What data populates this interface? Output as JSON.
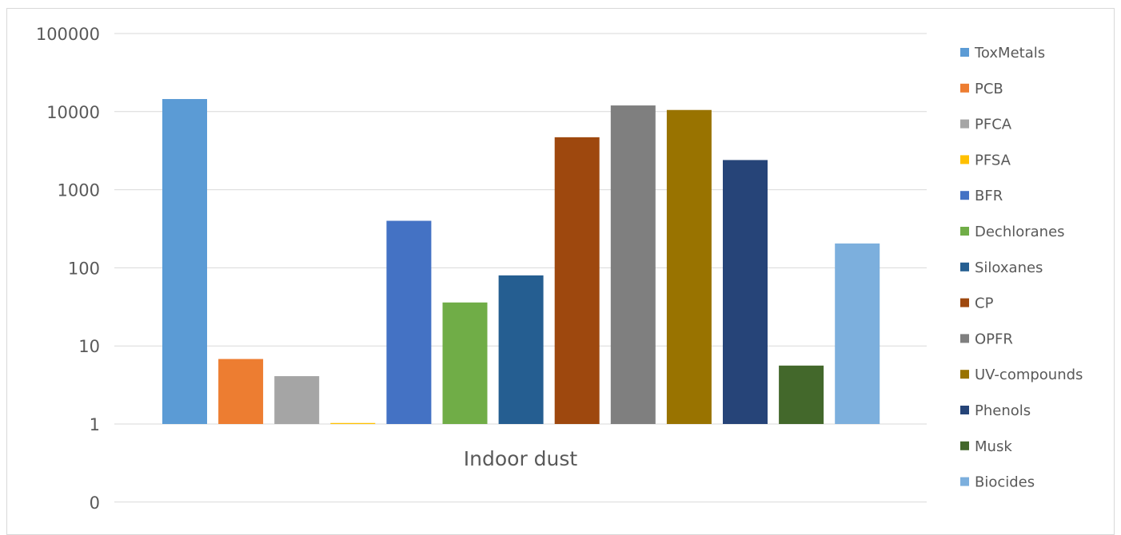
{
  "chart_data": {
    "type": "bar",
    "scale": "log",
    "categories": [
      "Indoor dust"
    ],
    "y_ticks": [
      "0",
      "1",
      "10",
      "100",
      "1000",
      "10000",
      "100000"
    ],
    "grid": true,
    "legend_position": "right",
    "series": [
      {
        "name": "ToxMetals",
        "values": [
          14500
        ],
        "color": "#5b9bd5"
      },
      {
        "name": "PCB",
        "values": [
          6.8
        ],
        "color": "#ed7d31"
      },
      {
        "name": "PFCA",
        "values": [
          4.1
        ],
        "color": "#a5a5a5"
      },
      {
        "name": "PFSA",
        "values": [
          1.03
        ],
        "color": "#ffc000"
      },
      {
        "name": "BFR",
        "values": [
          400
        ],
        "color": "#4472c4"
      },
      {
        "name": "Dechloranes",
        "values": [
          36
        ],
        "color": "#70ad47"
      },
      {
        "name": "Siloxanes",
        "values": [
          80
        ],
        "color": "#255e91"
      },
      {
        "name": "CP",
        "values": [
          4700
        ],
        "color": "#9e480e"
      },
      {
        "name": "OPFR",
        "values": [
          12000
        ],
        "color": "#7f7f7f"
      },
      {
        "name": "UV-compounds",
        "values": [
          10500
        ],
        "color": "#997300"
      },
      {
        "name": "Phenols",
        "values": [
          2400
        ],
        "color": "#264478"
      },
      {
        "name": "Musk",
        "values": [
          5.6
        ],
        "color": "#43682b"
      },
      {
        "name": "Biocides",
        "values": [
          205
        ],
        "color": "#7cafdd"
      }
    ]
  }
}
